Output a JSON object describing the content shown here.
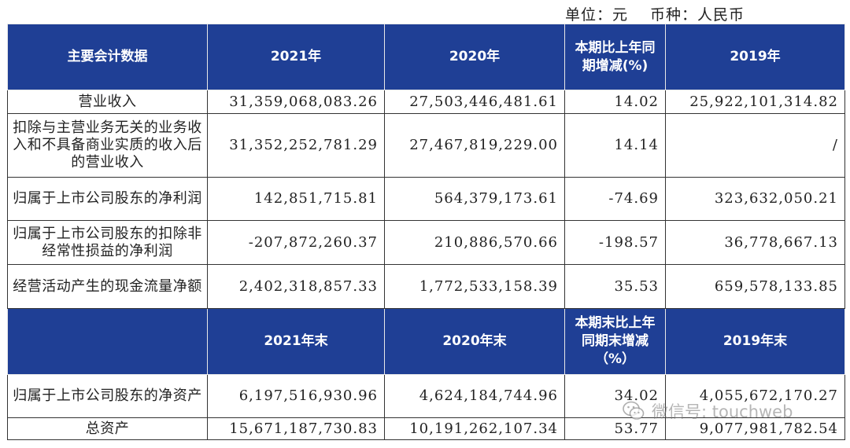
{
  "unit": {
    "unit_label": "单位：元",
    "currency_label": "币种：人民币"
  },
  "header1": {
    "col0": "主要会计数据",
    "col1": "2021年",
    "col2": "2020年",
    "col3": "本期比上年同期增减(%)",
    "col4": "2019年"
  },
  "rows1": [
    {
      "label": "营业收入",
      "v2021": "31,359,068,083.26",
      "v2020": "27,503,446,481.61",
      "change": "14.02",
      "v2019": "25,922,101,314.82"
    },
    {
      "label": "扣除与主营业务无关的业务收入和不具备商业实质的收入后的营业收入",
      "v2021": "31,352,252,781.29",
      "v2020": "27,467,819,229.00",
      "change": "14.14",
      "v2019": "/"
    },
    {
      "label": "归属于上市公司股东的净利润",
      "v2021": "142,851,715.81",
      "v2020": "564,379,173.61",
      "change": "-74.69",
      "v2019": "323,632,050.21"
    },
    {
      "label": "归属于上市公司股东的扣除非经常性损益的净利润",
      "v2021": "-207,872,260.37",
      "v2020": "210,886,570.66",
      "change": "-198.57",
      "v2019": "36,778,667.13"
    },
    {
      "label": "经营活动产生的现金流量净额",
      "v2021": "2,402,318,857.33",
      "v2020": "1,772,533,158.39",
      "change": "35.53",
      "v2019": "659,578,133.85"
    }
  ],
  "header2": {
    "col0": "",
    "col1": "2021年末",
    "col2": "2020年末",
    "col3": "本期末比上年同期末增减（%）",
    "col4": "2019年末"
  },
  "rows2": [
    {
      "label": "归属于上市公司股东的净资产",
      "v2021": "6,197,516,930.96",
      "v2020": "4,624,184,744.96",
      "change": "34.02",
      "v2019": "4,055,672,170.27"
    },
    {
      "label": "总资产",
      "v2021": "15,671,187,730.83",
      "v2020": "10,191,262,107.34",
      "change": "53.77",
      "v2019": "9,077,981,782.54"
    }
  ],
  "watermark": {
    "text": "微信号: touchweb",
    "icon": "wechat-icon"
  },
  "colors": {
    "header_bg": "#1f3f95",
    "header_text": "#ffffff"
  }
}
